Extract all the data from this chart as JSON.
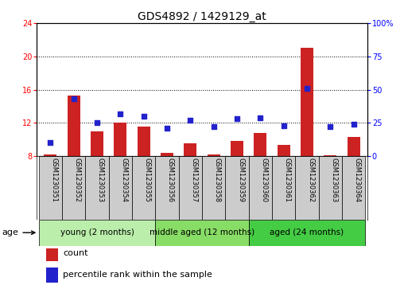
{
  "title": "GDS4892 / 1429129_at",
  "samples": [
    "GSM1230351",
    "GSM1230352",
    "GSM1230353",
    "GSM1230354",
    "GSM1230355",
    "GSM1230356",
    "GSM1230357",
    "GSM1230358",
    "GSM1230359",
    "GSM1230360",
    "GSM1230361",
    "GSM1230362",
    "GSM1230363",
    "GSM1230364"
  ],
  "counts": [
    8.2,
    15.3,
    11.0,
    12.0,
    11.5,
    8.4,
    9.5,
    8.2,
    9.8,
    10.8,
    9.3,
    21.0,
    8.1,
    10.3
  ],
  "percentiles": [
    10,
    43,
    25,
    32,
    30,
    21,
    27,
    22,
    28,
    29,
    23,
    51,
    22,
    24
  ],
  "bar_bottom": 8,
  "left_ylim": [
    8,
    24
  ],
  "right_ylim": [
    0,
    100
  ],
  "left_yticks": [
    8,
    12,
    16,
    20,
    24
  ],
  "right_yticks": [
    0,
    25,
    50,
    75,
    100
  ],
  "right_yticklabels": [
    "0",
    "25",
    "50",
    "75",
    "100%"
  ],
  "bar_color": "#cc2222",
  "dot_color": "#2222cc",
  "grid_color": "black",
  "groups": [
    {
      "label": "young (2 months)",
      "start": 0,
      "end": 5,
      "color": "#bbeeaa"
    },
    {
      "label": "middle aged (12 months)",
      "start": 5,
      "end": 9,
      "color": "#88dd66"
    },
    {
      "label": "aged (24 months)",
      "start": 9,
      "end": 14,
      "color": "#44cc44"
    }
  ],
  "age_label": "age",
  "legend_items": [
    {
      "color": "#cc2222",
      "label": "count"
    },
    {
      "color": "#2222cc",
      "label": "percentile rank within the sample"
    }
  ],
  "title_fontsize": 10,
  "tick_fontsize": 7,
  "group_label_fontsize": 7.5,
  "sample_fontsize": 6,
  "legend_fontsize": 8,
  "bar_width": 0.55,
  "sample_box_color": "#cccccc",
  "fig_width": 5.08,
  "fig_height": 3.63,
  "dpi": 100
}
